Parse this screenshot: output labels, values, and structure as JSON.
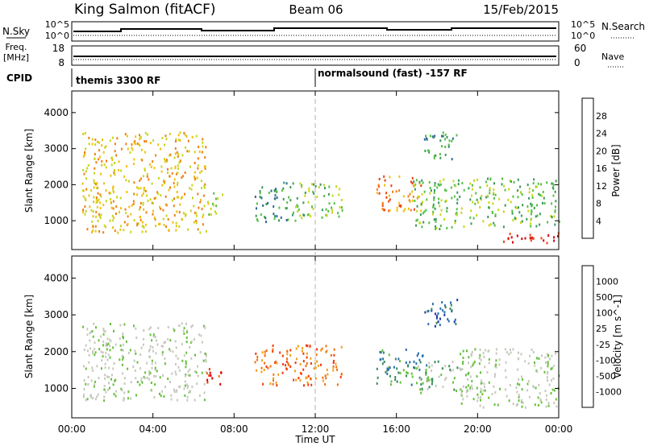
{
  "header": {
    "station": "King Salmon (fitACF)",
    "beam": "Beam 06",
    "date": "15/Feb/2015"
  },
  "noise_panel": {
    "left_label": "N.Sky",
    "right_label": "N.Search",
    "left_ticks": [
      "10^5",
      "10^0"
    ],
    "right_ticks": [
      "10^5",
      "10^0"
    ]
  },
  "freq_panel": {
    "left_label_1": "Freq.",
    "left_label_2": "[MHz]",
    "right_label": "Nave",
    "left_ticks": [
      "18",
      "8"
    ],
    "right_ticks": [
      "60",
      "0"
    ]
  },
  "cpid_panel": {
    "label": "CPID",
    "segments": [
      {
        "text": "themis 3300 RF",
        "start_hour": 0
      },
      {
        "text": "normalsound (fast) -157 RF",
        "start_hour": 12
      }
    ]
  },
  "time_axis": {
    "label": "Time UT",
    "ticks": [
      "00:00",
      "04:00",
      "08:00",
      "12:00",
      "16:00",
      "20:00",
      "00:00"
    ],
    "range_hours": [
      0,
      24
    ]
  },
  "chart_data": [
    {
      "type": "heatmap",
      "panel": "power",
      "ylabel": "Slant Range [km]",
      "yticks": [
        "1000",
        "2000",
        "3000",
        "4000"
      ],
      "ylim": [
        200,
        4600
      ],
      "xlim_hours": [
        0,
        24
      ],
      "colorbar": {
        "label": "Power [dB]",
        "ticks": [
          "4",
          "8",
          "12",
          "16",
          "20",
          "24",
          "28"
        ],
        "colors": [
          "#0000e0",
          "#2040c0",
          "#2e6a98",
          "#3a9a5a",
          "#56c044",
          "#c8d61e",
          "#f0c010",
          "#f08018",
          "#f04010",
          "#d80000"
        ]
      },
      "regions": [
        {
          "t0": 0.5,
          "t1": 6.6,
          "r0": 700,
          "r1": 3500,
          "level": 6
        },
        {
          "t0": 6.6,
          "t1": 7.4,
          "r0": 1100,
          "r1": 1800,
          "level": 5
        },
        {
          "t0": 9.0,
          "t1": 11.0,
          "r0": 1000,
          "r1": 2100,
          "level": 3
        },
        {
          "t0": 11.0,
          "t1": 13.3,
          "r0": 1100,
          "r1": 2100,
          "level": 4
        },
        {
          "t0": 15.0,
          "t1": 17.2,
          "r0": 1300,
          "r1": 2300,
          "level": 7
        },
        {
          "t0": 16.8,
          "t1": 24.0,
          "r0": 800,
          "r1": 2200,
          "level": 4
        },
        {
          "t0": 17.3,
          "t1": 19.0,
          "r0": 2700,
          "r1": 3500,
          "level": 3
        },
        {
          "t0": 21.0,
          "t1": 24.0,
          "r0": 400,
          "r1": 700,
          "level": 9
        }
      ]
    },
    {
      "type": "heatmap",
      "panel": "velocity",
      "ylabel": "Slant Range [km]",
      "yticks": [
        "1000",
        "2000",
        "3000",
        "4000"
      ],
      "ylim": [
        200,
        4600
      ],
      "xlim_hours": [
        0,
        24
      ],
      "colorbar": {
        "label": "Velocity [m s^-1]",
        "ticks": [
          "1000",
          "500",
          "100",
          "25",
          "-25",
          "-100",
          "-500",
          "-1000"
        ],
        "colors": [
          "#1a3aa8",
          "#2a6eb0",
          "#3a8a5c",
          "#66c03c",
          "#c8c8c0",
          "#c8c8c0",
          "#f0a020",
          "#f07010",
          "#f03a10",
          "#d80000"
        ]
      },
      "regions": [
        {
          "t0": 0.5,
          "t1": 6.6,
          "r0": 700,
          "r1": 2800,
          "level": 4
        },
        {
          "t0": 6.6,
          "t1": 7.4,
          "r0": 1100,
          "r1": 1700,
          "level": 8
        },
        {
          "t0": 9.0,
          "t1": 13.5,
          "r0": 1100,
          "r1": 2200,
          "level": 7
        },
        {
          "t0": 15.0,
          "t1": 17.5,
          "r0": 1100,
          "r1": 2100,
          "level": 2
        },
        {
          "t0": 17.0,
          "t1": 19.0,
          "r0": 900,
          "r1": 1800,
          "level": 3
        },
        {
          "t0": 19.0,
          "t1": 24.0,
          "r0": 500,
          "r1": 2100,
          "level": 4
        },
        {
          "t0": 17.3,
          "t1": 19.0,
          "r0": 2700,
          "r1": 3500,
          "level": 1
        }
      ]
    }
  ]
}
